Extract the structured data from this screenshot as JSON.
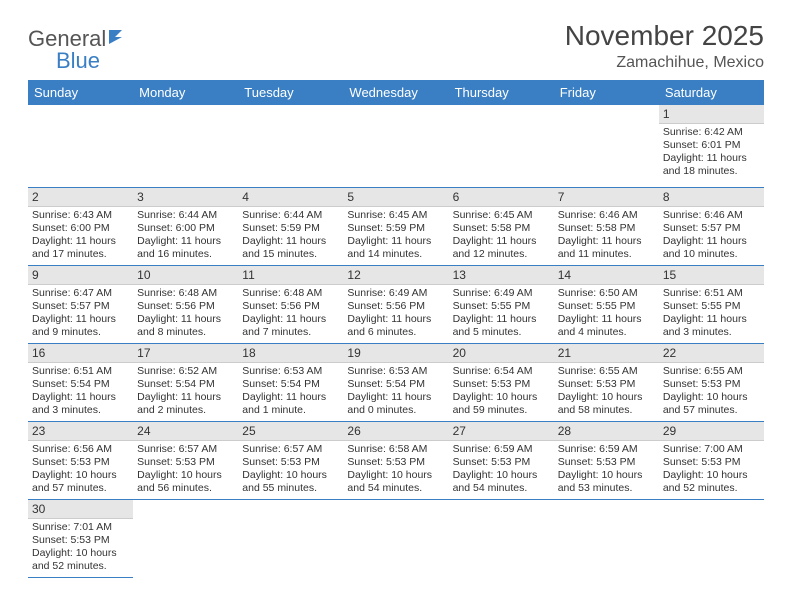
{
  "logo": {
    "text1": "General",
    "text2": "Blue"
  },
  "title": "November 2025",
  "location": "Zamachihue, Mexico",
  "colors": {
    "header_bg": "#3a7fc4",
    "header_text": "#ffffff",
    "daynum_bg": "#e6e6e6",
    "row_border": "#3a7fc4"
  },
  "weekdays": [
    "Sunday",
    "Monday",
    "Tuesday",
    "Wednesday",
    "Thursday",
    "Friday",
    "Saturday"
  ],
  "weeks": [
    [
      null,
      null,
      null,
      null,
      null,
      null,
      {
        "n": "1",
        "sr": "6:42 AM",
        "ss": "6:01 PM",
        "dl": "11 hours and 18 minutes."
      }
    ],
    [
      {
        "n": "2",
        "sr": "6:43 AM",
        "ss": "6:00 PM",
        "dl": "11 hours and 17 minutes."
      },
      {
        "n": "3",
        "sr": "6:44 AM",
        "ss": "6:00 PM",
        "dl": "11 hours and 16 minutes."
      },
      {
        "n": "4",
        "sr": "6:44 AM",
        "ss": "5:59 PM",
        "dl": "11 hours and 15 minutes."
      },
      {
        "n": "5",
        "sr": "6:45 AM",
        "ss": "5:59 PM",
        "dl": "11 hours and 14 minutes."
      },
      {
        "n": "6",
        "sr": "6:45 AM",
        "ss": "5:58 PM",
        "dl": "11 hours and 12 minutes."
      },
      {
        "n": "7",
        "sr": "6:46 AM",
        "ss": "5:58 PM",
        "dl": "11 hours and 11 minutes."
      },
      {
        "n": "8",
        "sr": "6:46 AM",
        "ss": "5:57 PM",
        "dl": "11 hours and 10 minutes."
      }
    ],
    [
      {
        "n": "9",
        "sr": "6:47 AM",
        "ss": "5:57 PM",
        "dl": "11 hours and 9 minutes."
      },
      {
        "n": "10",
        "sr": "6:48 AM",
        "ss": "5:56 PM",
        "dl": "11 hours and 8 minutes."
      },
      {
        "n": "11",
        "sr": "6:48 AM",
        "ss": "5:56 PM",
        "dl": "11 hours and 7 minutes."
      },
      {
        "n": "12",
        "sr": "6:49 AM",
        "ss": "5:56 PM",
        "dl": "11 hours and 6 minutes."
      },
      {
        "n": "13",
        "sr": "6:49 AM",
        "ss": "5:55 PM",
        "dl": "11 hours and 5 minutes."
      },
      {
        "n": "14",
        "sr": "6:50 AM",
        "ss": "5:55 PM",
        "dl": "11 hours and 4 minutes."
      },
      {
        "n": "15",
        "sr": "6:51 AM",
        "ss": "5:55 PM",
        "dl": "11 hours and 3 minutes."
      }
    ],
    [
      {
        "n": "16",
        "sr": "6:51 AM",
        "ss": "5:54 PM",
        "dl": "11 hours and 3 minutes."
      },
      {
        "n": "17",
        "sr": "6:52 AM",
        "ss": "5:54 PM",
        "dl": "11 hours and 2 minutes."
      },
      {
        "n": "18",
        "sr": "6:53 AM",
        "ss": "5:54 PM",
        "dl": "11 hours and 1 minute."
      },
      {
        "n": "19",
        "sr": "6:53 AM",
        "ss": "5:54 PM",
        "dl": "11 hours and 0 minutes."
      },
      {
        "n": "20",
        "sr": "6:54 AM",
        "ss": "5:53 PM",
        "dl": "10 hours and 59 minutes."
      },
      {
        "n": "21",
        "sr": "6:55 AM",
        "ss": "5:53 PM",
        "dl": "10 hours and 58 minutes."
      },
      {
        "n": "22",
        "sr": "6:55 AM",
        "ss": "5:53 PM",
        "dl": "10 hours and 57 minutes."
      }
    ],
    [
      {
        "n": "23",
        "sr": "6:56 AM",
        "ss": "5:53 PM",
        "dl": "10 hours and 57 minutes."
      },
      {
        "n": "24",
        "sr": "6:57 AM",
        "ss": "5:53 PM",
        "dl": "10 hours and 56 minutes."
      },
      {
        "n": "25",
        "sr": "6:57 AM",
        "ss": "5:53 PM",
        "dl": "10 hours and 55 minutes."
      },
      {
        "n": "26",
        "sr": "6:58 AM",
        "ss": "5:53 PM",
        "dl": "10 hours and 54 minutes."
      },
      {
        "n": "27",
        "sr": "6:59 AM",
        "ss": "5:53 PM",
        "dl": "10 hours and 54 minutes."
      },
      {
        "n": "28",
        "sr": "6:59 AM",
        "ss": "5:53 PM",
        "dl": "10 hours and 53 minutes."
      },
      {
        "n": "29",
        "sr": "7:00 AM",
        "ss": "5:53 PM",
        "dl": "10 hours and 52 minutes."
      }
    ],
    [
      {
        "n": "30",
        "sr": "7:01 AM",
        "ss": "5:53 PM",
        "dl": "10 hours and 52 minutes."
      },
      null,
      null,
      null,
      null,
      null,
      null
    ]
  ],
  "labels": {
    "sunrise": "Sunrise:",
    "sunset": "Sunset:",
    "daylight": "Daylight:"
  }
}
